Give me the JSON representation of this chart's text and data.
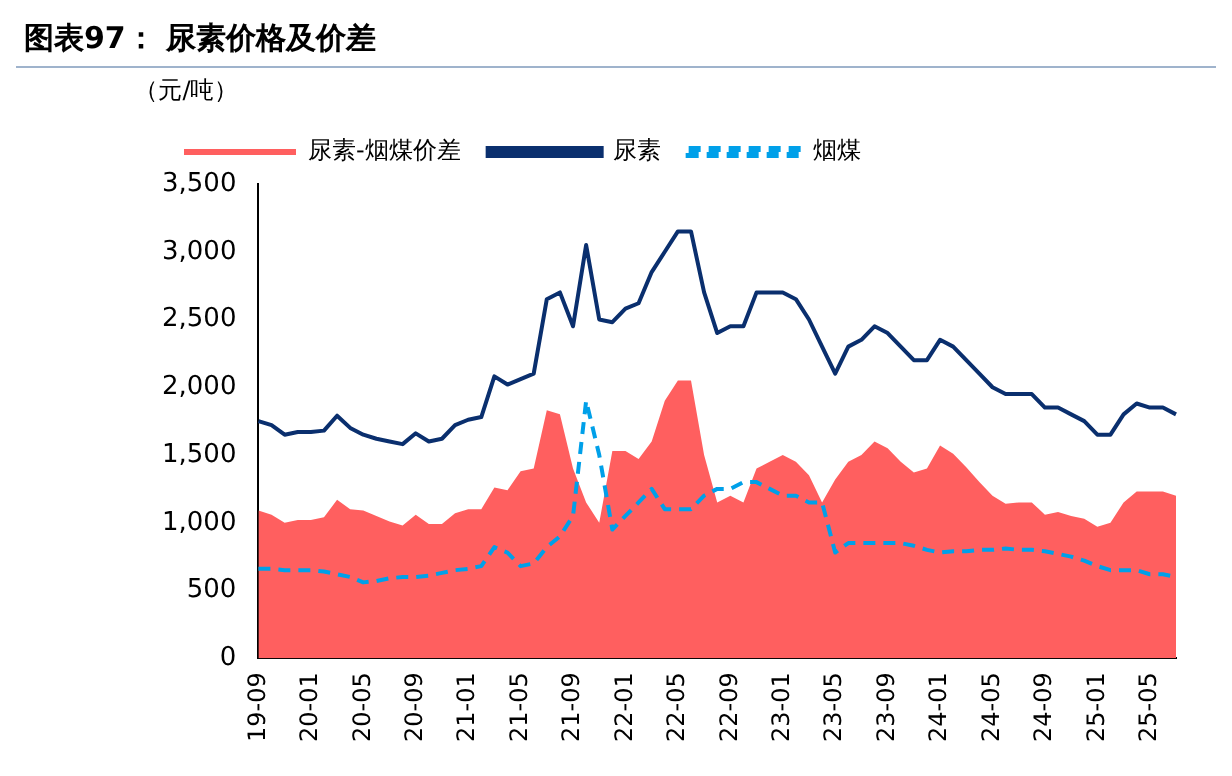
{
  "chart_data": {
    "type": "area",
    "title": "图表97：  尿素价格及价差",
    "ylabel": "（元/吨）",
    "categories": [
      "19-09",
      null,
      null,
      null,
      "20-01",
      null,
      null,
      null,
      "20-05",
      null,
      null,
      null,
      "20-09",
      null,
      null,
      null,
      "21-01",
      null,
      null,
      null,
      "21-05",
      null,
      null,
      null,
      "21-09",
      null,
      null,
      null,
      "22-01",
      null,
      null,
      null,
      "22-05",
      null,
      null,
      null,
      "22-09",
      null,
      null,
      null,
      "23-01",
      null,
      null,
      null,
      "23-05",
      null,
      null,
      null,
      "23-09",
      null,
      null,
      null,
      "24-01",
      null,
      null,
      null,
      "24-05",
      null,
      null,
      null,
      "24-09",
      null,
      null,
      null,
      "25-01",
      null,
      null,
      null,
      "25-05",
      null,
      null
    ],
    "series": [
      {
        "name": "尿素-烟煤价差",
        "type": "area",
        "color": "#ff5f5f",
        "values": [
          1090,
          1060,
          1000,
          1020,
          1020,
          1040,
          1170,
          1100,
          1090,
          1050,
          1010,
          980,
          1060,
          990,
          990,
          1070,
          1100,
          1100,
          1260,
          1240,
          1380,
          1400,
          1830,
          1800,
          1400,
          1150,
          1000,
          1530,
          1530,
          1470,
          1600,
          1900,
          2050,
          2050,
          1500,
          1150,
          1200,
          1150,
          1400,
          1450,
          1500,
          1450,
          1350,
          1150,
          1320,
          1450,
          1500,
          1600,
          1550,
          1450,
          1370,
          1400,
          1570,
          1510,
          1410,
          1300,
          1200,
          1140,
          1150,
          1150,
          1060,
          1080,
          1050,
          1030,
          970,
          1000,
          1150,
          1230,
          1230,
          1230,
          1200
        ]
      },
      {
        "name": "尿素",
        "type": "line",
        "color": "#0a2f6e",
        "line_style": "solid",
        "values": [
          1750,
          1720,
          1650,
          1670,
          1670,
          1680,
          1790,
          1700,
          1650,
          1620,
          1600,
          1580,
          1660,
          1600,
          1620,
          1720,
          1760,
          1780,
          2080,
          2020,
          2060,
          2100,
          2650,
          2700,
          2450,
          3050,
          2500,
          2480,
          2580,
          2620,
          2850,
          3000,
          3150,
          3150,
          2700,
          2400,
          2450,
          2450,
          2700,
          2700,
          2700,
          2650,
          2500,
          2300,
          2100,
          2300,
          2350,
          2450,
          2400,
          2300,
          2200,
          2200,
          2350,
          2300,
          2200,
          2100,
          2000,
          1950,
          1950,
          1950,
          1850,
          1850,
          1800,
          1750,
          1650,
          1650,
          1800,
          1880,
          1850,
          1850,
          1800
        ]
      },
      {
        "name": "烟煤",
        "type": "line",
        "color": "#00a0e9",
        "line_style": "dashed",
        "values": [
          660,
          660,
          650,
          650,
          650,
          640,
          620,
          600,
          560,
          570,
          590,
          600,
          600,
          610,
          630,
          650,
          660,
          680,
          820,
          780,
          680,
          700,
          820,
          900,
          1050,
          1900,
          1500,
          950,
          1050,
          1150,
          1250,
          1100,
          1100,
          1100,
          1200,
          1250,
          1250,
          1300,
          1300,
          1250,
          1200,
          1200,
          1150,
          1150,
          780,
          850,
          850,
          850,
          850,
          850,
          830,
          800,
          780,
          790,
          790,
          800,
          800,
          810,
          800,
          800,
          790,
          770,
          750,
          720,
          680,
          650,
          650,
          650,
          620,
          620,
          600
        ]
      }
    ],
    "ylim": [
      0,
      3500
    ],
    "yticks": [
      0,
      500,
      {
        "value": 1000,
        "label": "1,000"
      },
      {
        "value": 1500,
        "label": "1,500"
      },
      {
        "value": 2000,
        "label": "2,000"
      },
      {
        "value": 2500,
        "label": "2,500"
      },
      {
        "value": 3000,
        "label": "3,000"
      },
      {
        "value": 3500,
        "label": "3,500"
      }
    ],
    "grid": false,
    "legend": "top"
  }
}
